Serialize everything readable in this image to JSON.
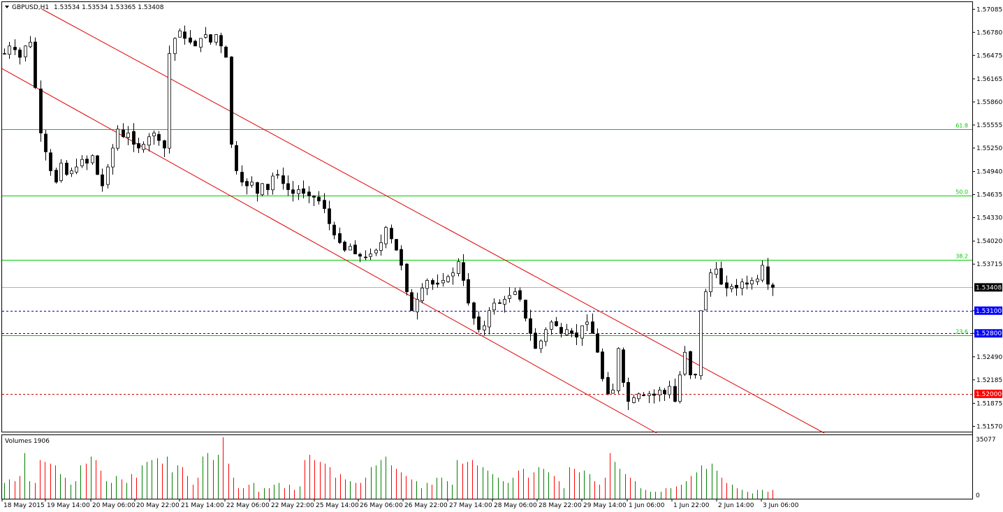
{
  "header": {
    "symbol_label": "GBPUSD,H1",
    "ohlc": "1.53534 1.53534 1.53365 1.53408"
  },
  "volume_panel": {
    "title": "Volumes 1906",
    "max_label": "35077",
    "zero_label": "0"
  },
  "colors": {
    "bull": "#008000",
    "bear": "#ff0000",
    "candle": "#000000",
    "channel": "#e00000",
    "fib": "#00cc00",
    "blue_line": "#0000cc",
    "red_line": "#cc0000",
    "current_price_bg": "#000000",
    "blue_tag_bg": "#0000ff",
    "red_tag_bg": "#ff0000"
  },
  "chart_data": {
    "type": "candlestick",
    "symbol": "GBPUSD",
    "timeframe": "H1",
    "y_ticks": [
      "1.57085",
      "1.56780",
      "1.56475",
      "1.56165",
      "1.55860",
      "1.55555",
      "1.55250",
      "1.54940",
      "1.54635",
      "1.54330",
      "1.54020",
      "1.53715",
      "1.53408",
      "1.53100",
      "1.52800",
      "1.52490",
      "1.52185",
      "1.51875",
      "1.51570"
    ],
    "ylim": [
      1.515,
      1.5718
    ],
    "x_ticks": [
      "18 May 2015",
      "19 May 14:00",
      "20 May 06:00",
      "20 May 22:00",
      "21 May 14:00",
      "22 May 06:00",
      "22 May 22:00",
      "25 May 14:00",
      "26 May 06:00",
      "26 May 22:00",
      "27 May 14:00",
      "28 May 06:00",
      "28 May 22:00",
      "29 May 14:00",
      "1 Jun 06:00",
      "1 Jun 22:00",
      "2 Jun 14:00",
      "3 Jun 06:00"
    ],
    "fib_levels": [
      {
        "label": "61.8",
        "price": 1.555
      },
      {
        "label": "50.0",
        "price": 1.5462
      },
      {
        "label": "38.2",
        "price": 1.5377
      },
      {
        "label": "23.6",
        "price": 1.5277
      }
    ],
    "horizontal_lines": [
      {
        "label": "1.53100",
        "price": 1.531,
        "style": "dashed",
        "color": "blue"
      },
      {
        "label": "1.52800",
        "price": 1.528,
        "style": "dashed",
        "color": "blue"
      },
      {
        "label": "1.52000",
        "price": 1.52,
        "style": "dashed",
        "color": "red"
      },
      {
        "label": "1.53408",
        "price": 1.53408,
        "style": "solid",
        "color": "gray"
      }
    ],
    "current_price": "1.53408",
    "close_path": [
      1.565,
      1.566,
      1.5655,
      1.5645,
      1.566,
      1.5665,
      1.5605,
      1.5545,
      1.552,
      1.5495,
      1.548,
      1.5505,
      1.549,
      1.5495,
      1.55,
      1.551,
      1.5505,
      1.5515,
      1.549,
      1.5475,
      1.55,
      1.5525,
      1.555,
      1.554,
      1.5545,
      1.553,
      1.5525,
      1.553,
      1.554,
      1.5545,
      1.5535,
      1.5525,
      1.565,
      1.567,
      1.568,
      1.567,
      1.5665,
      1.566,
      1.567,
      1.5675,
      1.5665,
      1.5675,
      1.566,
      1.5645,
      1.553,
      1.5495,
      1.548,
      1.5475,
      1.548,
      1.5465,
      1.5478,
      1.547,
      1.5488,
      1.549,
      1.5478,
      1.547,
      1.5465,
      1.547,
      1.5465,
      1.5462,
      1.546,
      1.5455,
      1.5445,
      1.5425,
      1.541,
      1.54,
      1.539,
      1.5395,
      1.5385,
      1.5382,
      1.538,
      1.5385,
      1.539,
      1.54,
      1.542,
      1.5405,
      1.539,
      1.537,
      1.5335,
      1.531,
      1.5325,
      1.534,
      1.535,
      1.5345,
      1.5345,
      1.535,
      1.5355,
      1.536,
      1.5375,
      1.535,
      1.532,
      1.53,
      1.5285,
      1.529,
      1.531,
      1.532,
      1.532,
      1.5325,
      1.533,
      1.5335,
      1.5325,
      1.53,
      1.528,
      1.526,
      1.527,
      1.5285,
      1.5295,
      1.529,
      1.528,
      1.5285,
      1.528,
      1.5275,
      1.529,
      1.5295,
      1.528,
      1.5255,
      1.522,
      1.52,
      1.5205,
      1.526,
      1.5215,
      1.519,
      1.5195,
      1.52,
      1.5198,
      1.52,
      1.5198,
      1.5205,
      1.52,
      1.521,
      1.519,
      1.5225,
      1.5255,
      1.5225,
      1.5225,
      1.531,
      1.5335,
      1.536,
      1.5365,
      1.5345,
      1.534,
      1.5342,
      1.534,
      1.5348,
      1.5345,
      1.535,
      1.5352,
      1.537,
      1.5345,
      1.53408
    ],
    "volume_profile": [
      9,
      11,
      10,
      13,
      26,
      10,
      9,
      22,
      21,
      20,
      19,
      14,
      12,
      8,
      10,
      19,
      20,
      24,
      22,
      16,
      10,
      9,
      13,
      11,
      9,
      14,
      12,
      19,
      21,
      22,
      23,
      20,
      24,
      15,
      19,
      18,
      13,
      8,
      12,
      24,
      26,
      22,
      25,
      35,
      20,
      12,
      6,
      6,
      8,
      9,
      4,
      6,
      6,
      8,
      9,
      6,
      8,
      5,
      7,
      22,
      25,
      22,
      21,
      20,
      18,
      12,
      14,
      11,
      10,
      9,
      9,
      12,
      18,
      19,
      22,
      24,
      19,
      17,
      15,
      13,
      11,
      10,
      6,
      9,
      8,
      12,
      12,
      10,
      8,
      22,
      20,
      21,
      22,
      19,
      18,
      16,
      14,
      12,
      10,
      9,
      12,
      16,
      17,
      12,
      15,
      18,
      17,
      15,
      13,
      10,
      6,
      18,
      17,
      15,
      16,
      14,
      10,
      8,
      12,
      26,
      21,
      17,
      14,
      12,
      10,
      6,
      5,
      4,
      4,
      4,
      6,
      6,
      7,
      8,
      10,
      13,
      15,
      19,
      17,
      20,
      16,
      12,
      9,
      8,
      6,
      5,
      4,
      3,
      5,
      5,
      4,
      5
    ]
  }
}
